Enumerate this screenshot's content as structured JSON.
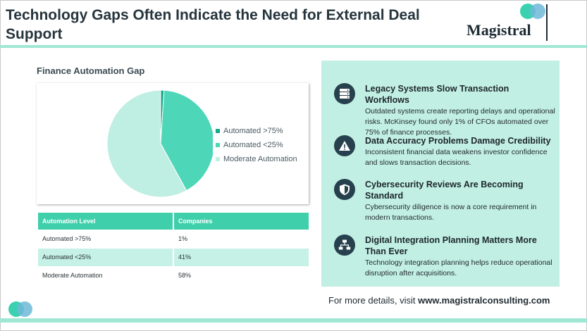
{
  "page": {
    "title": "Technology Gaps Often Indicate the Need for External Deal Support",
    "logo_text": "Magistral",
    "footer_prefix": "For more details, visit ",
    "footer_link": "www.magistralconsulting.com"
  },
  "colors": {
    "accent": "#3fd0ab",
    "light_accent": "#c2efe4",
    "icon_bg": "#26404d",
    "slice_automated_75": "#1aa88a",
    "slice_automated_25": "#4dd6b8",
    "slice_moderate": "#bfeee3"
  },
  "chart": {
    "title": "Finance Automation Gap"
  },
  "chart_data": {
    "type": "pie",
    "title": "Finance Automation Gap",
    "categories": [
      "Automated >75%",
      "Automated <25%",
      "Moderate Automation"
    ],
    "values": [
      1,
      41,
      58
    ],
    "legend_position": "right"
  },
  "table": {
    "headers": [
      "Automation Level",
      "Companies"
    ],
    "rows": [
      [
        "Automated >75%",
        "1%"
      ],
      [
        "Automated <25%",
        "41%"
      ],
      [
        "Moderate Automation",
        "58%"
      ]
    ]
  },
  "insights": [
    {
      "icon": "server-icon",
      "heading": "Legacy Systems Slow Transaction Workflows",
      "body": "Outdated systems create reporting delays and operational risks. McKinsey found only 1% of CFOs automated over 75% of finance processes."
    },
    {
      "icon": "warning-icon",
      "heading": "Data Accuracy Problems Damage Credibility",
      "body": "Inconsistent financial data weakens investor confidence and slows transaction decisions."
    },
    {
      "icon": "shield-icon",
      "heading": "Cybersecurity Reviews Are Becoming Standard",
      "body": "Cybersecurity diligence is now a core requirement in modern transactions."
    },
    {
      "icon": "network-icon",
      "heading": "Digital Integration Planning Matters More Than Ever",
      "body": "Technology integration planning helps reduce operational disruption after acquisitions."
    }
  ]
}
